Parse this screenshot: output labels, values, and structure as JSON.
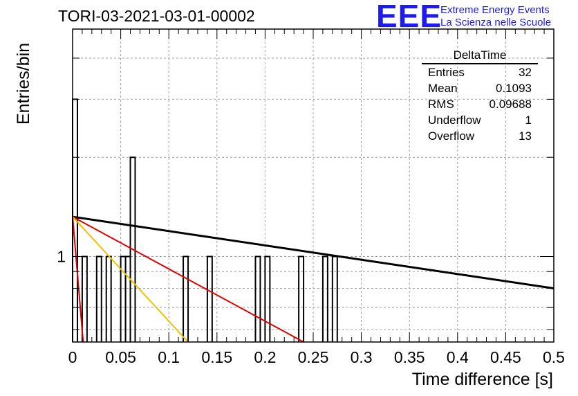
{
  "title": "TORI-03-2021-03-01-00002",
  "logo": {
    "mark": "EEE",
    "line1": "Extreme Energy Events",
    "line2": "La Scienza nelle Scuole"
  },
  "colors": {
    "axis": "#000000",
    "grid": "#a0a0a0",
    "hist": "#000000",
    "fit_black": "#000000",
    "fit_red": "#e00000",
    "fit_yellow": "#f0c000",
    "fit_steep_red": "#e00000",
    "logo": "#1c1cf0"
  },
  "stats": {
    "name": "DeltaTime",
    "rows": [
      {
        "label": "Entries",
        "value": "32"
      },
      {
        "label": "Mean",
        "value": "0.1093"
      },
      {
        "label": "RMS",
        "value": "0.09688"
      },
      {
        "label": "Underflow",
        "value": "1"
      },
      {
        "label": "Overflow",
        "value": "13"
      }
    ]
  },
  "chart_data": {
    "type": "bar",
    "title": "TORI-03-2021-03-01-00002",
    "xlabel": "Time difference [s]",
    "ylabel": "Entries/bin",
    "xlim": [
      0,
      0.5
    ],
    "ylim": [
      0.55,
      4.9
    ],
    "log_y": true,
    "grid": true,
    "bin_width": 0.005,
    "bins": [
      {
        "x": 0.0,
        "value": 3
      },
      {
        "x": 0.01,
        "value": 1
      },
      {
        "x": 0.025,
        "value": 1
      },
      {
        "x": 0.035,
        "value": 1
      },
      {
        "x": 0.05,
        "value": 1
      },
      {
        "x": 0.055,
        "value": 1
      },
      {
        "x": 0.06,
        "value": 2
      },
      {
        "x": 0.115,
        "value": 1
      },
      {
        "x": 0.14,
        "value": 1
      },
      {
        "x": 0.19,
        "value": 1
      },
      {
        "x": 0.2,
        "value": 1
      },
      {
        "x": 0.235,
        "value": 1
      },
      {
        "x": 0.26,
        "value": 1
      },
      {
        "x": 0.27,
        "value": 1
      }
    ],
    "x_ticks": [
      "0",
      "0.05",
      "0.1",
      "0.15",
      "0.2",
      "0.25",
      "0.3",
      "0.35",
      "0.4",
      "0.45",
      "0.5"
    ],
    "y_ticks": [
      "1"
    ],
    "fits": [
      {
        "color": "black",
        "points": [
          [
            0.0,
            1.32
          ],
          [
            0.5,
            0.8
          ]
        ]
      },
      {
        "color": "red",
        "points": [
          [
            0.0,
            1.32
          ],
          [
            0.24,
            0.55
          ]
        ]
      },
      {
        "color": "yellow",
        "points": [
          [
            0.0,
            1.32
          ],
          [
            0.12,
            0.55
          ]
        ]
      },
      {
        "color": "steep-red",
        "points": [
          [
            0.0,
            1.32
          ],
          [
            0.011,
            0.55
          ]
        ]
      }
    ]
  }
}
